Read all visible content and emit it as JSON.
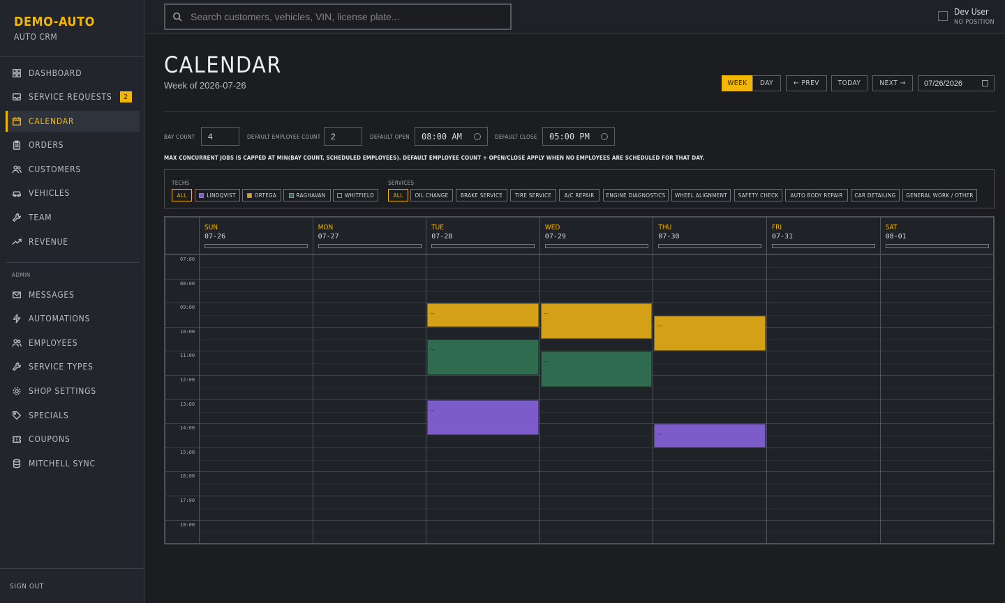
{
  "brand": {
    "name": "DEMO-AUTO",
    "subtitle": "AUTO CRM"
  },
  "nav": {
    "items": [
      {
        "label": "DASHBOARD",
        "icon": "grid-icon"
      },
      {
        "label": "SERVICE REQUESTS",
        "icon": "inbox-icon",
        "badge": "2"
      },
      {
        "label": "CALENDAR",
        "icon": "calendar-icon",
        "active": true
      },
      {
        "label": "ORDERS",
        "icon": "clipboard-icon"
      },
      {
        "label": "CUSTOMERS",
        "icon": "users-icon"
      },
      {
        "label": "VEHICLES",
        "icon": "car-icon"
      },
      {
        "label": "TEAM",
        "icon": "wrench-icon"
      },
      {
        "label": "REVENUE",
        "icon": "trend-icon"
      }
    ],
    "admin_label": "ADMIN",
    "admin_items": [
      {
        "label": "MESSAGES",
        "icon": "mail-icon"
      },
      {
        "label": "AUTOMATIONS",
        "icon": "bolt-icon"
      },
      {
        "label": "EMPLOYEES",
        "icon": "users-icon"
      },
      {
        "label": "SERVICE TYPES",
        "icon": "wrench-icon"
      },
      {
        "label": "SHOP SETTINGS",
        "icon": "gear-icon"
      },
      {
        "label": "SPECIALS",
        "icon": "tag-icon"
      },
      {
        "label": "COUPONS",
        "icon": "ticket-icon"
      },
      {
        "label": "MITCHELL SYNC",
        "icon": "database-icon"
      }
    ],
    "sign_out": "SIGN OUT"
  },
  "topbar": {
    "search_placeholder": "Search customers, vehicles, VIN, license plate...",
    "user_name": "Dev User",
    "user_position": "NO POSITION"
  },
  "header": {
    "title": "CALENDAR",
    "subtitle": "Week of 2026-07-26",
    "view_week": "WEEK",
    "view_day": "DAY",
    "prev": "← PREV",
    "today": "TODAY",
    "next": "NEXT →",
    "date_value": "07/26/2026"
  },
  "settings": {
    "bay_count_label": "BAY COUNT",
    "bay_count": "4",
    "default_employee_label": "DEFAULT EMPLOYEE COUNT",
    "default_employee": "2",
    "open_label": "DEFAULT OPEN",
    "open_value": "08:00 AM",
    "close_label": "DEFAULT CLOSE",
    "close_value": "05:00 PM",
    "note": "MAX CONCURRENT JOBS IS CAPPED AT MIN(BAY COUNT, SCHEDULED EMPLOYEES). DEFAULT EMPLOYEE COUNT + OPEN/CLOSE APPLY WHEN NO EMPLOYEES ARE SCHEDULED FOR THAT DAY."
  },
  "filters": {
    "techs_label": "TECHS",
    "techs": [
      {
        "label": "ALL",
        "selected": true
      },
      {
        "label": "LINDQVIST",
        "color": "#7b5cc8"
      },
      {
        "label": "ORTEGA",
        "color": "#d4a017"
      },
      {
        "label": "RAGHAVAN",
        "color": "#2e6b4f"
      },
      {
        "label": "WHITFIELD",
        "color": "#1b1d21"
      }
    ],
    "services_label": "SERVICES",
    "services": [
      {
        "label": "ALL",
        "selected": true
      },
      {
        "label": "OIL CHANGE"
      },
      {
        "label": "BRAKE SERVICE"
      },
      {
        "label": "TIRE SERVICE"
      },
      {
        "label": "A/C REPAIR"
      },
      {
        "label": "ENGINE DIAGNOSTICS"
      },
      {
        "label": "WHEEL ALIGNMENT"
      },
      {
        "label": "SAFETY CHECK"
      },
      {
        "label": "AUTO BODY REPAIR"
      },
      {
        "label": "CAR DETAILING"
      },
      {
        "label": "GENERAL WORK / OTHER"
      }
    ]
  },
  "calendar": {
    "days": [
      {
        "name": "SUN",
        "date": "07-26"
      },
      {
        "name": "MON",
        "date": "07-27"
      },
      {
        "name": "TUE",
        "date": "07-28"
      },
      {
        "name": "WED",
        "date": "07-29"
      },
      {
        "name": "THU",
        "date": "07-30"
      },
      {
        "name": "FRI",
        "date": "07-31"
      },
      {
        "name": "SAT",
        "date": "08-01"
      }
    ],
    "hours": [
      "07:00",
      "08:00",
      "09:00",
      "10:00",
      "11:00",
      "12:00",
      "13:00",
      "14:00",
      "15:00",
      "16:00",
      "17:00",
      "18:00"
    ],
    "first_hour": 7,
    "events": [
      {
        "day": 2,
        "start": 9.0,
        "end": 10.0,
        "color": "#d4a017",
        "label": "–"
      },
      {
        "day": 2,
        "start": 10.5,
        "end": 12.0,
        "color": "#2e6b4f",
        "label": "–"
      },
      {
        "day": 2,
        "start": 13.0,
        "end": 14.5,
        "color": "#7b5cc8",
        "label": "–"
      },
      {
        "day": 3,
        "start": 9.0,
        "end": 10.5,
        "color": "#d4a017",
        "label": "–"
      },
      {
        "day": 3,
        "start": 11.0,
        "end": 12.5,
        "color": "#2e6b4f",
        "label": "–"
      },
      {
        "day": 4,
        "start": 9.5,
        "end": 11.0,
        "color": "#d4a017",
        "label": "–"
      },
      {
        "day": 4,
        "start": 14.0,
        "end": 15.0,
        "color": "#7b5cc8",
        "label": "–"
      }
    ]
  }
}
